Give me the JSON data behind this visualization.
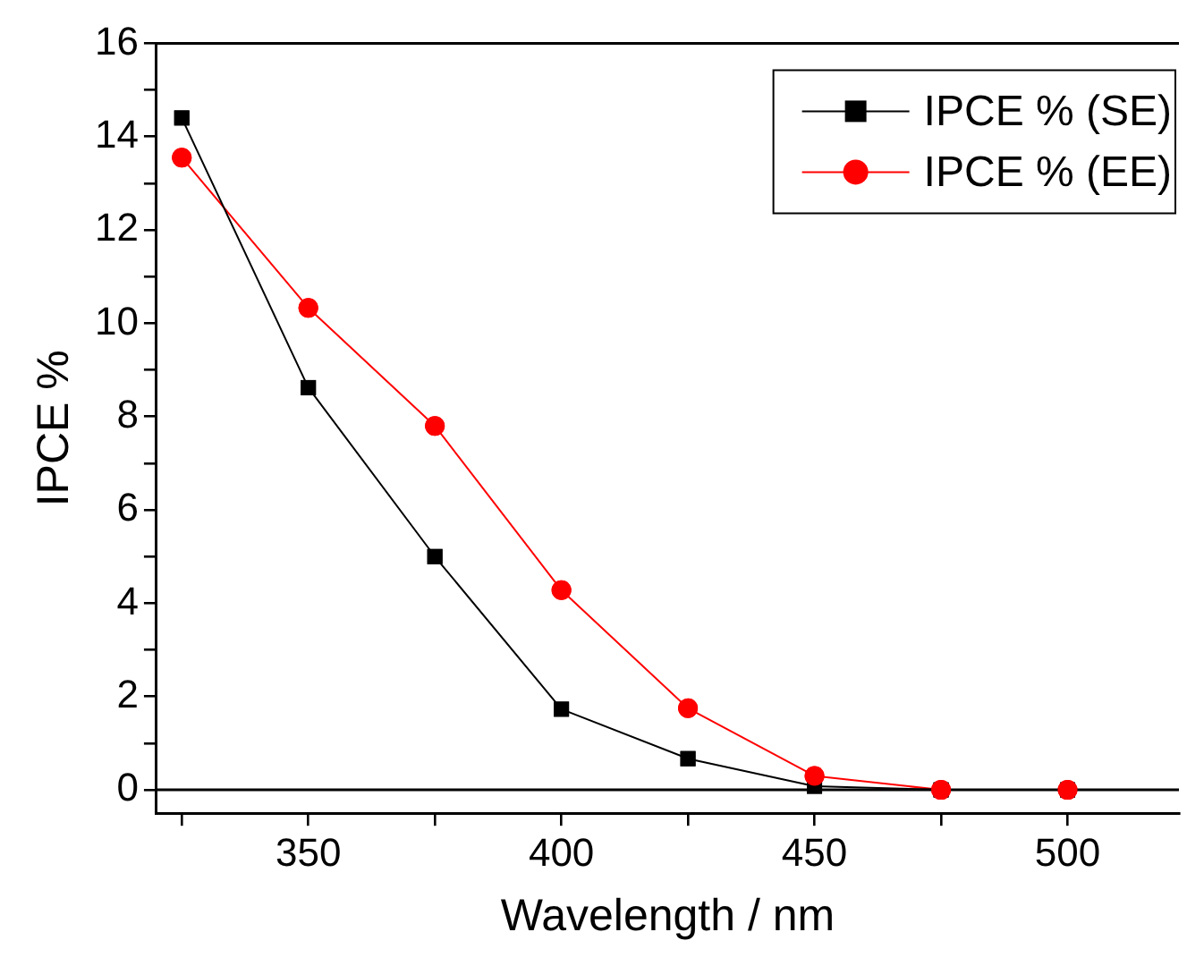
{
  "chart_data": {
    "type": "line",
    "xlabel": "Wavelength / nm",
    "ylabel": "IPCE %",
    "x": [
      325,
      350,
      375,
      400,
      425,
      450,
      475,
      500
    ],
    "series": [
      {
        "name": "IPCE % (SE)",
        "color": "#000000",
        "marker": "square",
        "values": [
          14.4,
          8.62,
          5.0,
          1.73,
          0.67,
          0.08,
          0,
          0
        ]
      },
      {
        "name": "IPCE % (EE)",
        "color": "#ff0000",
        "marker": "circle",
        "values": [
          13.55,
          10.33,
          7.8,
          4.28,
          1.75,
          0.3,
          0,
          0
        ]
      }
    ],
    "xlim": [
      320,
      522
    ],
    "xticks": [
      {
        "value": 325,
        "label": null
      },
      350,
      {
        "value": 375,
        "label": null
      },
      400,
      {
        "value": 425,
        "label": null
      },
      450,
      {
        "value": 475,
        "label": null
      },
      500
    ],
    "ylim": [
      -0.5,
      16
    ],
    "yticks": [
      0,
      {
        "value": 1,
        "label": null
      },
      2,
      {
        "value": 3,
        "label": null
      },
      4,
      {
        "value": 5,
        "label": null
      },
      6,
      {
        "value": 7,
        "label": null
      },
      8,
      {
        "value": 9,
        "label": null
      },
      10,
      {
        "value": 11,
        "label": null
      },
      12,
      {
        "value": 13,
        "label": null
      },
      14,
      {
        "value": 15,
        "label": null
      },
      16
    ],
    "ref_lines": [
      {
        "axis": "y",
        "value": 0,
        "color": "#000000"
      }
    ],
    "grid": false,
    "legend": "top right",
    "line_style": "solid"
  }
}
